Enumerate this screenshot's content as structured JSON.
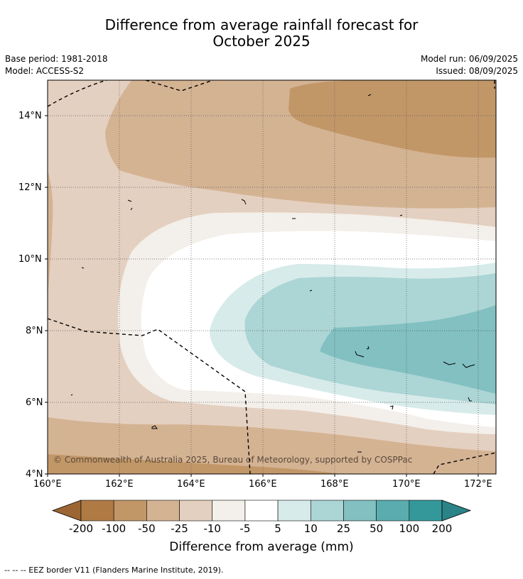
{
  "title_line1": "Difference from average rainfall forecast for",
  "title_line2": "October 2025",
  "base_period": "Base period: 1981-2018",
  "model": "Model: ACCESS-S2",
  "model_run": "Model run: 06/09/2025",
  "issued": "Issued: 08/09/2025",
  "copyright": "© Commonwealth of Australia 2025, Bureau of Meteorology, supported by COSPPac",
  "lat_labels": [
    "14°N",
    "12°N",
    "10°N",
    "8°N",
    "6°N",
    "4°N"
  ],
  "lon_labels": [
    "160°E",
    "162°E",
    "164°E",
    "166°E",
    "168°E",
    "170°E",
    "172°E"
  ],
  "colorbar": {
    "ticks": [
      "-200",
      "-100",
      "-50",
      "-25",
      "-10",
      "-5",
      "5",
      "10",
      "25",
      "50",
      "100",
      "200"
    ],
    "colors": [
      "#9c6634",
      "#b07a45",
      "#c29768",
      "#d4b393",
      "#e4d0c0",
      "#f3efea",
      "#ffffff",
      "#d7ebea",
      "#acd5d5",
      "#82c0c1",
      "#5aacaf",
      "#34989b",
      "#2a8387"
    ],
    "label": "Difference from average (mm)"
  },
  "footer": "-- -- -- EEZ border V11 (Flanders Marine Institute, 2019)."
}
